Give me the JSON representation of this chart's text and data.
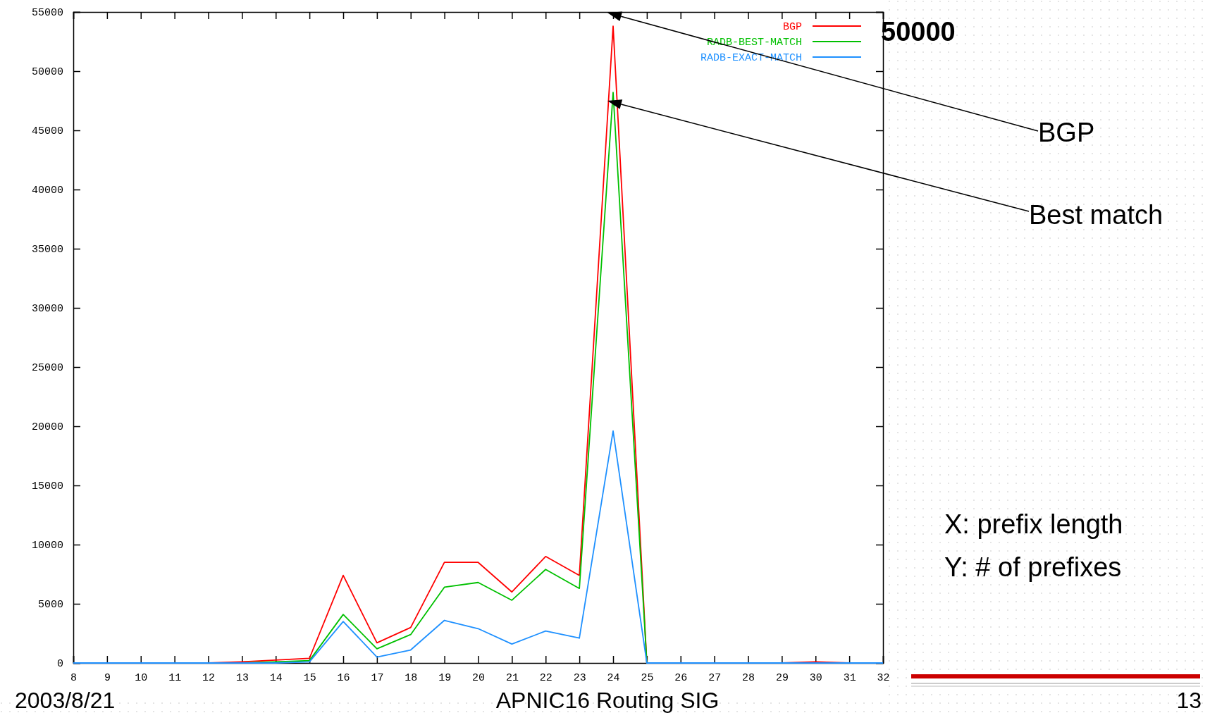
{
  "chart_data": {
    "type": "line",
    "xlabel": "X: prefix length",
    "ylabel": "Y: # of prefixes",
    "x": [
      8,
      9,
      10,
      11,
      12,
      13,
      14,
      15,
      16,
      17,
      18,
      19,
      20,
      21,
      22,
      23,
      24,
      25,
      26,
      27,
      28,
      29,
      30,
      31,
      32
    ],
    "series": [
      {
        "name": "BGP",
        "color": "#ff0000",
        "values": [
          null,
          null,
          null,
          0,
          0,
          100,
          250,
          400,
          7400,
          1700,
          3000,
          8500,
          8500,
          6000,
          9000,
          7400,
          53800,
          0,
          0,
          0,
          0,
          0,
          100,
          0,
          0
        ]
      },
      {
        "name": "RADB-BEST-MATCH",
        "color": "#00c000",
        "values": [
          null,
          null,
          null,
          null,
          0,
          0,
          100,
          200,
          4100,
          1200,
          2400,
          6400,
          6800,
          5300,
          7900,
          6300,
          48200,
          0,
          0,
          null,
          null,
          null,
          null,
          null,
          null
        ]
      },
      {
        "name": "RADB-EXACT-MATCH",
        "color": "#1e90ff",
        "values": [
          0,
          0,
          0,
          0,
          0,
          0,
          0,
          100,
          3500,
          500,
          1100,
          3600,
          2900,
          1600,
          2700,
          2100,
          19600,
          0,
          0,
          0,
          0,
          0,
          0,
          0,
          0
        ]
      }
    ],
    "xlim": [
      8,
      32
    ],
    "xticks": [
      8,
      9,
      10,
      11,
      12,
      13,
      14,
      15,
      16,
      17,
      18,
      19,
      20,
      21,
      22,
      23,
      24,
      25,
      26,
      27,
      28,
      29,
      30,
      31,
      32
    ],
    "ylim": [
      0,
      55000
    ],
    "yticks": [
      0,
      5000,
      10000,
      15000,
      20000,
      25000,
      30000,
      35000,
      40000,
      45000,
      50000,
      55000
    ],
    "legend": "top right",
    "grid": false,
    "marker": "none",
    "line_style": "solid",
    "annotations": [
      "50000",
      "BGP",
      "Best match",
      "2003/8/21",
      "APNIC16 Routing SIG",
      "13"
    ]
  }
}
